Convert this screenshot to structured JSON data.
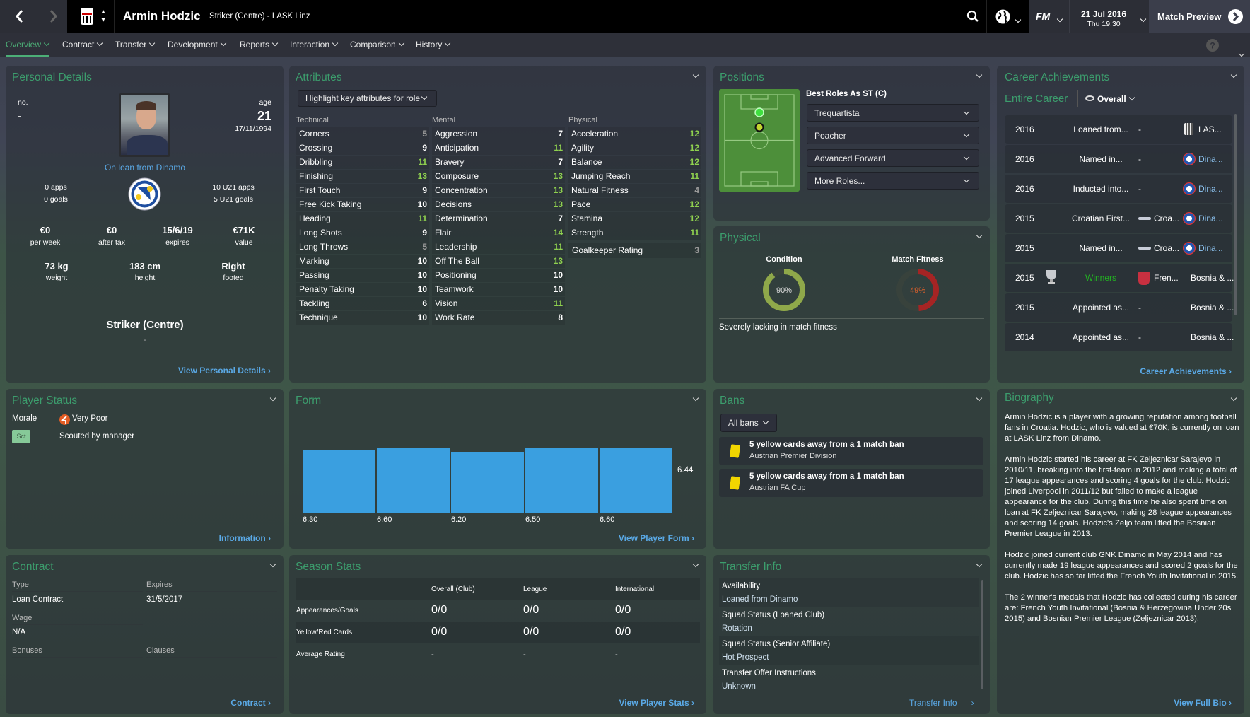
{
  "header": {
    "player_name": "Armin Hodzic",
    "subtitle": "Striker (Centre) - LASK Linz",
    "date": "21 Jul 2016",
    "time": "Thu 19:30",
    "continue_label": "Match Preview",
    "fm_label": "FM"
  },
  "subnav": [
    "Overview",
    "Contract",
    "Transfer",
    "Development",
    "Reports",
    "Interaction",
    "Comparison",
    "History"
  ],
  "personal": {
    "title": "Personal Details",
    "no_label": "no.",
    "no_value": "-",
    "age_label": "age",
    "age_value": "21",
    "dob": "17/11/1994",
    "loan": "On loan from Dinamo",
    "apps": "0 apps",
    "goals": "0 goals",
    "u21_apps": "10 U21 apps",
    "u21_goals": "5 U21 goals",
    "money": [
      {
        "value": "€0",
        "label": "per week"
      },
      {
        "value": "€0",
        "label": "after tax"
      },
      {
        "value": "15/6/19",
        "label": "expires"
      },
      {
        "value": "€71K",
        "label": "value"
      }
    ],
    "body": [
      {
        "value": "73 kg",
        "label": "weight"
      },
      {
        "value": "183 cm",
        "label": "height"
      },
      {
        "value": "Right",
        "label": "footed"
      }
    ],
    "position": "Striker (Centre)",
    "position_sub": "-",
    "link": "View Personal Details"
  },
  "attributes": {
    "title": "Attributes",
    "highlight": "Highlight key attributes for role",
    "colors": {
      "high": "#8fd14f",
      "normal": "#ffffff",
      "low": "#9a9a9a"
    },
    "technical_label": "Technical",
    "mental_label": "Mental",
    "physical_label": "Physical",
    "technical": [
      [
        "Corners",
        5
      ],
      [
        "Crossing",
        9
      ],
      [
        "Dribbling",
        11
      ],
      [
        "Finishing",
        13
      ],
      [
        "First Touch",
        9
      ],
      [
        "Free Kick Taking",
        10
      ],
      [
        "Heading",
        11
      ],
      [
        "Long Shots",
        9
      ],
      [
        "Long Throws",
        5
      ],
      [
        "Marking",
        10
      ],
      [
        "Passing",
        10
      ],
      [
        "Penalty Taking",
        10
      ],
      [
        "Tackling",
        6
      ],
      [
        "Technique",
        10
      ]
    ],
    "mental": [
      [
        "Aggression",
        7
      ],
      [
        "Anticipation",
        11
      ],
      [
        "Bravery",
        7
      ],
      [
        "Composure",
        13
      ],
      [
        "Concentration",
        13
      ],
      [
        "Decisions",
        13
      ],
      [
        "Determination",
        7
      ],
      [
        "Flair",
        14
      ],
      [
        "Leadership",
        11
      ],
      [
        "Off The Ball",
        13
      ],
      [
        "Positioning",
        10
      ],
      [
        "Teamwork",
        10
      ],
      [
        "Vision",
        11
      ],
      [
        "Work Rate",
        8
      ]
    ],
    "physical": [
      [
        "Acceleration",
        12
      ],
      [
        "Agility",
        12
      ],
      [
        "Balance",
        12
      ],
      [
        "Jumping Reach",
        11
      ],
      [
        "Natural Fitness",
        4
      ],
      [
        "Pace",
        12
      ],
      [
        "Stamina",
        12
      ],
      [
        "Strength",
        11
      ]
    ],
    "gk_label": "Goalkeeper Rating",
    "gk_value": 3
  },
  "positions": {
    "title": "Positions",
    "best_roles": "Best Roles As ST (C)",
    "roles": [
      "Trequartista",
      "Poacher",
      "Advanced Forward",
      "More Roles..."
    ]
  },
  "physical": {
    "title": "Physical",
    "condition_label": "Condition",
    "condition": 90,
    "condition_text": "90%",
    "condition_color": "#8fa84a",
    "fitness_label": "Match Fitness",
    "fitness": 49,
    "fitness_text": "49%",
    "fitness_color": "#a52424",
    "note": "Severely lacking in match fitness"
  },
  "career": {
    "title": "Career Achievements",
    "scope": "Entire Career",
    "filter": "Overall",
    "rows": [
      {
        "year": "2016",
        "text": "Loaned from...",
        "comp": "-",
        "comp_name": "",
        "club": "LAS...",
        "club_icon": "lask-badge",
        "trophy": false
      },
      {
        "year": "2016",
        "text": "Named in...",
        "comp": "-",
        "comp_name": "",
        "club": "Dina...",
        "club_icon": "dinamo-badge",
        "trophy": false
      },
      {
        "year": "2016",
        "text": "Inducted into...",
        "comp": "-",
        "comp_name": "",
        "club": "Dina...",
        "club_icon": "dinamo-badge",
        "trophy": false
      },
      {
        "year": "2015",
        "text": "Croatian First...",
        "comp": "",
        "comp_name": "Croa...",
        "club": "Dina...",
        "club_icon": "dinamo-badge",
        "trophy": false
      },
      {
        "year": "2015",
        "text": "Named in...",
        "comp": "",
        "comp_name": "Croa...",
        "club": "Dina...",
        "club_icon": "dinamo-badge",
        "trophy": false
      },
      {
        "year": "2015",
        "text": "Winners",
        "comp": "",
        "comp_name": "Fren...",
        "club": "Bosnia & ...",
        "club_icon": "",
        "trophy": true
      },
      {
        "year": "2015",
        "text": "Appointed as...",
        "comp": "-",
        "comp_name": "",
        "club": "Bosnia & ...",
        "club_icon": "",
        "trophy": false
      },
      {
        "year": "2014",
        "text": "Appointed as...",
        "comp": "-",
        "comp_name": "",
        "club": "Bosnia & ...",
        "club_icon": "",
        "trophy": false
      }
    ],
    "link": "Career Achievements"
  },
  "status": {
    "title": "Player Status",
    "morale_label": "Morale",
    "morale": "Very Poor",
    "badge": "Sct",
    "scouted": "Scouted by manager",
    "link": "Information"
  },
  "form": {
    "title": "Form",
    "link": "View Player Form"
  },
  "chart_data": {
    "type": "bar",
    "categories": [
      "6.30",
      "6.60",
      "6.20",
      "6.50",
      "6.60"
    ],
    "values": [
      6.3,
      6.6,
      6.2,
      6.5,
      6.6
    ],
    "average_label": "6.44",
    "color": "#3a9fe0"
  },
  "bans": {
    "title": "Bans",
    "filter": "All bans",
    "items": [
      {
        "text": "5 yellow cards away from a 1 match ban",
        "comp": "Austrian Premier Division"
      },
      {
        "text": "5 yellow cards away from a 1 match ban",
        "comp": "Austrian FA Cup"
      }
    ]
  },
  "contract": {
    "title": "Contract",
    "type_label": "Type",
    "type": "Loan Contract",
    "expires_label": "Expires",
    "expires": "31/5/2017",
    "wage_label": "Wage",
    "wage": "N/A",
    "bonuses_label": "Bonuses",
    "clauses_label": "Clauses",
    "link": "Contract"
  },
  "season": {
    "title": "Season Stats",
    "columns": [
      "Overall (Club)",
      "League",
      "International"
    ],
    "rows": [
      {
        "label": "Appearances/Goals",
        "values": [
          "0/0",
          "0/0",
          "0/0"
        ]
      },
      {
        "label": "Yellow/Red Cards",
        "values": [
          "0/0",
          "0/0",
          "0/0"
        ]
      },
      {
        "label": "Average Rating",
        "values": [
          "-",
          "-",
          "-"
        ]
      }
    ],
    "link": "View Player Stats"
  },
  "transfer": {
    "title": "Transfer Info",
    "items": [
      {
        "label": "Availability",
        "value": "Loaned from Dinamo"
      },
      {
        "label": "Squad Status (Loaned Club)",
        "value": "Rotation"
      },
      {
        "label": "Squad Status (Senior Affiliate)",
        "value": "Hot Prospect"
      },
      {
        "label": "Transfer Offer Instructions",
        "value": "Unknown"
      }
    ],
    "link": "Transfer Info"
  },
  "biography": {
    "title": "Biography",
    "paragraphs": [
      "Armin Hodzic is a player with a growing reputation among football fans in Croatia. Hodzic, who is valued at €70K, is currently on loan at LASK Linz from Dinamo.",
      "Armin Hodzic started his career at FK Zeljeznicar Sarajevo in 2010/11, breaking into the first-team in 2012 and making a total of 17 league appearances and scoring 4 goals for the club. Hodzic joined Liverpool in 2011/12 but failed to make a league appearance for the club. During this time he also spent time on loan at FK Zeljeznicar Sarajevo, making 28 league appearances and scoring 14 goals. Hodzic's Zeljo team lifted the Bosnian Premier League in 2013.",
      "Hodzic joined current club GNK Dinamo in May 2014 and has currently made 19 league appearances and scored 2 goals for the club.  Hodzic has so far lifted the French Youth Invitational in 2015.",
      "The 2 winner's medals that Hodzic has collected during his career are: French Youth Invitational (Bosnia & Herzegovina Under 20s 2015) and Bosnian Premier League (Zeljeznicar 2013)."
    ],
    "link": "View Full Bio"
  }
}
